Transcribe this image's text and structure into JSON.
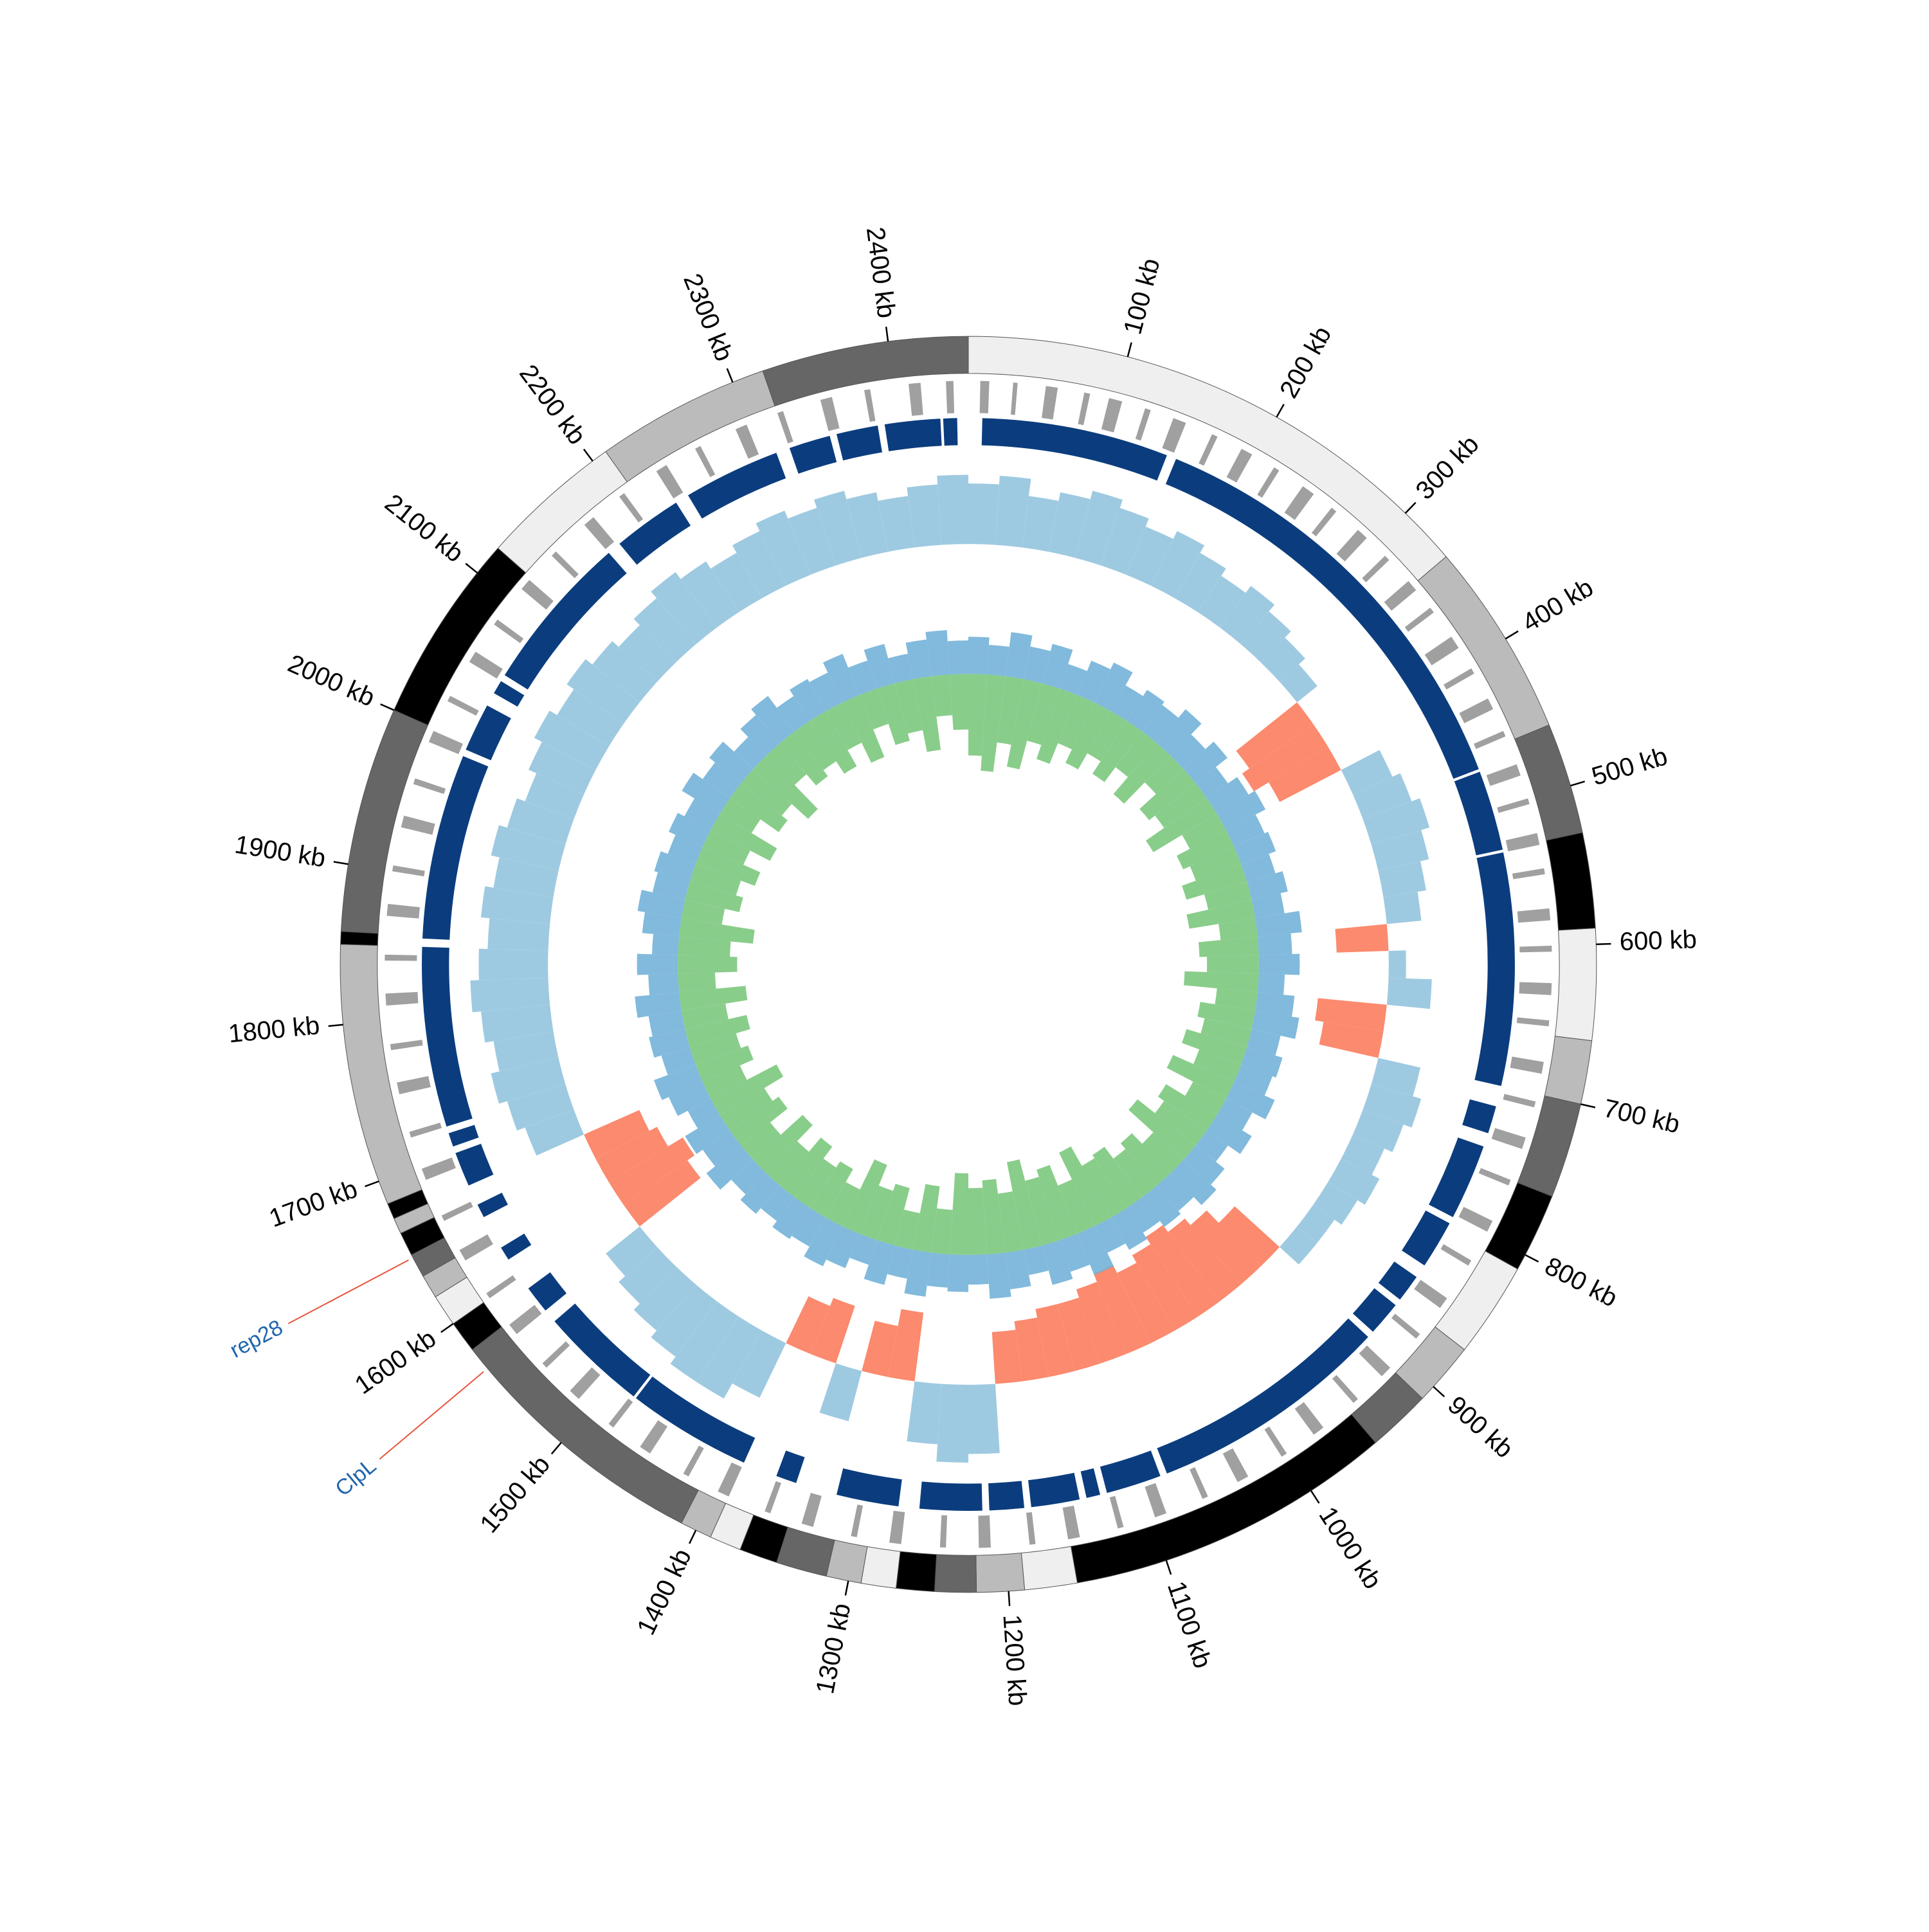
{
  "chart_data": {
    "type": "circos",
    "xlim": [
      0,
      2450
    ],
    "xticks": [
      {
        "value": 100,
        "label": "100 kb"
      },
      {
        "value": 200,
        "label": "200 kb"
      },
      {
        "value": 300,
        "label": "300 kb"
      },
      {
        "value": 400,
        "label": "400 kb"
      },
      {
        "value": 500,
        "label": "500 kb"
      },
      {
        "value": 600,
        "label": "600 kb"
      },
      {
        "value": 700,
        "label": "700 kb"
      },
      {
        "value": 800,
        "label": "800 kb"
      },
      {
        "value": 900,
        "label": "900 kb"
      },
      {
        "value": 1000,
        "label": "1000 kb"
      },
      {
        "value": 1100,
        "label": "1100 kb"
      },
      {
        "value": 1200,
        "label": "1200 kb"
      },
      {
        "value": 1300,
        "label": "1300 kb"
      },
      {
        "value": 1400,
        "label": "1400 kb"
      },
      {
        "value": 1500,
        "label": "1500 kb"
      },
      {
        "value": 1600,
        "label": "1600 kb"
      },
      {
        "value": 1700,
        "label": "1700 kb"
      },
      {
        "value": 1800,
        "label": "1800 kb"
      },
      {
        "value": 1900,
        "label": "1900 kb"
      },
      {
        "value": 2000,
        "label": "2000 kb"
      },
      {
        "value": 2100,
        "label": "2100 kb"
      },
      {
        "value": 2200,
        "label": "2200 kb"
      },
      {
        "value": 2300,
        "label": "2300 kb"
      },
      {
        "value": 2400,
        "label": "2400 kb"
      }
    ],
    "bands": [
      {
        "start": 0,
        "end": 337,
        "color": "#efefef"
      },
      {
        "start": 337,
        "end": 460,
        "color": "#bbbbbb"
      },
      {
        "start": 460,
        "end": 530,
        "color": "#666666"
      },
      {
        "start": 530,
        "end": 590,
        "color": "#000000"
      },
      {
        "start": 590,
        "end": 660,
        "color": "#efefef"
      },
      {
        "start": 660,
        "end": 700,
        "color": "#bbbbbb"
      },
      {
        "start": 700,
        "end": 760,
        "color": "#666666"
      },
      {
        "start": 760,
        "end": 810,
        "color": "#000000"
      },
      {
        "start": 810,
        "end": 870,
        "color": "#efefef"
      },
      {
        "start": 870,
        "end": 910,
        "color": "#bbbbbb"
      },
      {
        "start": 910,
        "end": 950,
        "color": "#666666"
      },
      {
        "start": 950,
        "end": 1157,
        "color": "#000000"
      },
      {
        "start": 1157,
        "end": 1190,
        "color": "#efefef"
      },
      {
        "start": 1190,
        "end": 1220,
        "color": "#bbbbbb"
      },
      {
        "start": 1220,
        "end": 1246,
        "color": "#666666"
      },
      {
        "start": 1246,
        "end": 1270,
        "color": "#000000"
      },
      {
        "start": 1270,
        "end": 1292,
        "color": "#efefef"
      },
      {
        "start": 1292,
        "end": 1314,
        "color": "#bbbbbb"
      },
      {
        "start": 1314,
        "end": 1346,
        "color": "#666666"
      },
      {
        "start": 1346,
        "end": 1370,
        "color": "#000000"
      },
      {
        "start": 1370,
        "end": 1390,
        "color": "#efefef"
      },
      {
        "start": 1390,
        "end": 1410,
        "color": "#bbbbbb"
      },
      {
        "start": 1410,
        "end": 1580,
        "color": "#666666"
      },
      {
        "start": 1580,
        "end": 1600,
        "color": "#000000"
      },
      {
        "start": 1600,
        "end": 1620,
        "color": "#efefef"
      },
      {
        "start": 1620,
        "end": 1635,
        "color": "#bbbbbb"
      },
      {
        "start": 1635,
        "end": 1650,
        "color": "#666666"
      },
      {
        "start": 1650,
        "end": 1665,
        "color": "#000000"
      },
      {
        "start": 1665,
        "end": 1675,
        "color": "#bbbbbb"
      },
      {
        "start": 1675,
        "end": 1685,
        "color": "#000000"
      },
      {
        "start": 1685,
        "end": 1850,
        "color": "#bbbbbb"
      },
      {
        "start": 1850,
        "end": 1858,
        "color": "#000000"
      },
      {
        "start": 1858,
        "end": 2000,
        "color": "#666666"
      },
      {
        "start": 2000,
        "end": 2120,
        "color": "#000000"
      },
      {
        "start": 2120,
        "end": 2210,
        "color": "#efefef"
      },
      {
        "start": 2210,
        "end": 2320,
        "color": "#bbbbbb"
      },
      {
        "start": 2320,
        "end": 2450,
        "color": "#666666"
      }
    ],
    "genes": {
      "color": "#a0a0a0",
      "spans": [
        [
          8,
          14
        ],
        [
          30,
          33
        ],
        [
          52,
          60
        ],
        [
          78,
          82
        ],
        [
          95,
          104
        ],
        [
          120,
          124
        ],
        [
          140,
          149
        ],
        [
          168,
          172
        ],
        [
          190,
          198
        ],
        [
          215,
          219
        ],
        [
          238,
          247
        ],
        [
          262,
          266
        ],
        [
          285,
          293
        ],
        [
          310,
          314
        ],
        [
          333,
          341
        ],
        [
          356,
          360
        ],
        [
          380,
          389
        ],
        [
          405,
          409
        ],
        [
          428,
          436
        ],
        [
          452,
          456
        ],
        [
          476,
          484
        ],
        [
          500,
          504
        ],
        [
          524,
          532
        ],
        [
          548,
          552
        ],
        [
          575,
          583
        ],
        [
          600,
          604
        ],
        [
          625,
          633
        ],
        [
          650,
          654
        ],
        [
          678,
          686
        ],
        [
          705,
          709
        ],
        [
          730,
          738
        ],
        [
          760,
          764
        ],
        [
          790,
          798
        ],
        [
          820,
          824
        ],
        [
          850,
          858
        ],
        [
          880,
          884
        ],
        [
          910,
          918
        ],
        [
          940,
          944
        ],
        [
          970,
          978
        ],
        [
          1000,
          1004
        ],
        [
          1030,
          1038
        ],
        [
          1060,
          1064
        ],
        [
          1090,
          1098
        ],
        [
          1120,
          1124
        ],
        [
          1150,
          1158
        ],
        [
          1180,
          1184
        ],
        [
          1210,
          1218
        ],
        [
          1240,
          1244
        ],
        [
          1270,
          1278
        ],
        [
          1300,
          1304
        ],
        [
          1330,
          1338
        ],
        [
          1360,
          1364
        ],
        [
          1390,
          1398
        ],
        [
          1420,
          1424
        ],
        [
          1450,
          1458
        ],
        [
          1480,
          1484
        ],
        [
          1510,
          1518
        ],
        [
          1540,
          1544
        ],
        [
          1570,
          1578
        ],
        [
          1600,
          1604
        ],
        [
          1630,
          1638
        ],
        [
          1660,
          1664
        ],
        [
          1690,
          1698
        ],
        [
          1720,
          1724
        ],
        [
          1750,
          1758
        ],
        [
          1780,
          1784
        ],
        [
          1810,
          1818
        ],
        [
          1840,
          1844
        ],
        [
          1870,
          1878
        ],
        [
          1900,
          1904
        ],
        [
          1930,
          1938
        ],
        [
          1960,
          1964
        ],
        [
          1990,
          1998
        ],
        [
          2020,
          2024
        ],
        [
          2050,
          2058
        ],
        [
          2080,
          2084
        ],
        [
          2110,
          2118
        ],
        [
          2140,
          2144
        ],
        [
          2170,
          2178
        ],
        [
          2200,
          2204
        ],
        [
          2230,
          2238
        ],
        [
          2260,
          2264
        ],
        [
          2290,
          2298
        ],
        [
          2320,
          2324
        ],
        [
          2350,
          2358
        ],
        [
          2380,
          2384
        ],
        [
          2410,
          2418
        ],
        [
          2435,
          2440
        ]
      ]
    },
    "blocks": {
      "color": "#0b3d7e",
      "spans": [
        [
          10,
          145
        ],
        [
          152,
          470
        ],
        [
          472,
          530
        ],
        [
          532,
          700
        ],
        [
          715,
          735
        ],
        [
          745,
          800
        ],
        [
          805,
          840
        ],
        [
          850,
          870
        ],
        [
          875,
          900
        ],
        [
          905,
          1080
        ],
        [
          1085,
          1125
        ],
        [
          1130,
          1140
        ],
        [
          1145,
          1180
        ],
        [
          1185,
          1210
        ],
        [
          1215,
          1260
        ],
        [
          1275,
          1320
        ],
        [
          1350,
          1365
        ],
        [
          1390,
          1480
        ],
        [
          1482,
          1560
        ],
        [
          1570,
          1590
        ],
        [
          1615,
          1625
        ],
        [
          1650,
          1660
        ],
        [
          1675,
          1700
        ],
        [
          1705,
          1715
        ],
        [
          1720,
          1850
        ],
        [
          1856,
          1990
        ],
        [
          1995,
          2030
        ],
        [
          2040,
          2050
        ],
        [
          2055,
          2170
        ],
        [
          2180,
          2230
        ],
        [
          2240,
          2310
        ],
        [
          2320,
          2350
        ],
        [
          2355,
          2385
        ],
        [
          2390,
          2430
        ],
        [
          2432,
          2442
        ]
      ]
    },
    "x": [
      0,
      25,
      50,
      75,
      100,
      125,
      150,
      175,
      200,
      225,
      250,
      275,
      300,
      325,
      350,
      375,
      400,
      425,
      450,
      475,
      500,
      525,
      550,
      575,
      600,
      625,
      650,
      675,
      700,
      725,
      750,
      775,
      800,
      825,
      850,
      875,
      900,
      925,
      950,
      975,
      1000,
      1025,
      1050,
      1075,
      1100,
      1125,
      1150,
      1175,
      1200,
      1225,
      1250,
      1275,
      1300,
      1325,
      1350,
      1375,
      1400,
      1425,
      1450,
      1475,
      1500,
      1525,
      1550,
      1575,
      1600,
      1625,
      1650,
      1675,
      1700,
      1725,
      1750,
      1775,
      1800,
      1825,
      1850,
      1875,
      1900,
      1925,
      1950,
      1975,
      2000,
      2025,
      2050,
      2075,
      2100,
      2125,
      2150,
      2175,
      2200,
      2225,
      2250,
      2275,
      2300,
      2325,
      2350,
      2375,
      2400,
      2425
    ],
    "coverage": {
      "ylim": [
        -1.2,
        1
      ],
      "positive_color": "#9ecae1",
      "negative_color": "#fb8a6e",
      "values": [
        0.7,
        0.8,
        0.6,
        0.7,
        0.8,
        0.7,
        0.6,
        0.7,
        0.6,
        0.5,
        0.6,
        0.5,
        0.4,
        0.3,
        -0.9,
        -1.0,
        -0.8,
        0.5,
        0.6,
        0.7,
        0.6,
        0.5,
        0.4,
        -0.6,
        0.2,
        0.5,
        -0.8,
        -0.7,
        0.5,
        0.6,
        0.5,
        0.4,
        0.5,
        0.4,
        0.3,
        0.3,
        -0.7,
        -0.9,
        -1.0,
        -1.1,
        -1.0,
        -0.9,
        -1.0,
        -0.9,
        -0.8,
        -0.8,
        -0.7,
        -0.6,
        0.8,
        0.9,
        0.7,
        -0.8,
        -0.6,
        0.6,
        -0.7,
        -0.6,
        0.7,
        0.9,
        0.9,
        0.8,
        0.7,
        0.6,
        0.5,
        -0.9,
        -1.0,
        -0.8,
        -0.7,
        0.6,
        0.7,
        0.8,
        0.7,
        0.8,
        0.9,
        0.8,
        0.7,
        0.8,
        0.7,
        0.8,
        0.7,
        0.6,
        0.7,
        0.8,
        0.7,
        0.8,
        0.7,
        0.6,
        0.7,
        0.8,
        0.7,
        0.6,
        0.7,
        0.8,
        0.7,
        0.8,
        0.7,
        0.6,
        0.7,
        0.8
      ]
    },
    "gc": {
      "ylim": [
        -1.4,
        1
      ],
      "series": [
        {
          "color": "#74c476",
          "values": [
            -1.1,
            -1.3,
            -0.9,
            -1.2,
            -0.8,
            -1.0,
            -0.7,
            -0.9,
            -0.65,
            -0.85,
            -0.6,
            -0.9,
            -0.5,
            -0.8,
            -0.7,
            -1.0,
            -0.55,
            -0.75,
            -0.65,
            -0.85,
            -0.6,
            -0.9,
            -0.5,
            -0.8,
            -0.7,
            -1.0,
            -0.55,
            -0.75,
            -0.65,
            -0.85,
            -0.6,
            -0.9,
            -0.5,
            -0.8,
            -0.7,
            -1.0,
            -0.55,
            -0.75,
            -0.65,
            -0.85,
            -0.8,
            -1.1,
            -0.7,
            -1.0,
            -0.9,
            -1.2,
            -0.8,
            -1.0,
            -0.9,
            -1.1,
            -0.6,
            -0.9,
            -0.5,
            -0.8,
            -0.7,
            -1.0,
            -0.55,
            -0.75,
            -0.65,
            -0.85,
            -0.6,
            -0.9,
            -0.5,
            -0.8,
            -0.7,
            -1.0,
            -0.55,
            -0.75,
            -0.65,
            -0.85,
            -0.6,
            -0.9,
            -0.5,
            -0.8,
            -0.7,
            -1.0,
            -0.55,
            -0.75,
            -0.65,
            -0.85,
            -0.6,
            -0.9,
            -0.5,
            -0.8,
            -0.7,
            -1.0,
            -0.55,
            -0.75,
            -0.65,
            -0.85,
            -0.6,
            -0.9,
            -0.5,
            -0.8,
            -0.7,
            -1.0,
            -0.55,
            -0.75
          ]
        },
        {
          "color": "#6baed6",
          "values": [
            0.5,
            0.4,
            0.6,
            0.45,
            0.55,
            0.35,
            0.5,
            0.6,
            0.4,
            0.5,
            0.45,
            0.6,
            0.4,
            0.55,
            0.35,
            0.5,
            0.6,
            0.45,
            0.5,
            0.4,
            0.5,
            0.4,
            0.6,
            0.45,
            0.55,
            0.35,
            0.5,
            0.6,
            0.4,
            0.5,
            0.45,
            0.6,
            0.4,
            0.55,
            0.35,
            0.5,
            0.6,
            0.45,
            0.5,
            0.4,
            0.5,
            0.4,
            0.6,
            0.45,
            0.55,
            0.35,
            0.5,
            0.6,
            0.4,
            0.5,
            0.45,
            0.6,
            0.4,
            0.55,
            0.35,
            0.5,
            0.6,
            0.45,
            0.5,
            0.4,
            0.5,
            0.4,
            0.6,
            0.45,
            0.55,
            0.35,
            0.5,
            0.6,
            0.4,
            0.5,
            0.45,
            0.6,
            0.4,
            0.55,
            0.35,
            0.5,
            0.6,
            0.45,
            0.5,
            0.4,
            0.5,
            0.4,
            0.6,
            0.45,
            0.55,
            0.35,
            0.5,
            0.6,
            0.4,
            0.5,
            0.45,
            0.6,
            0.4,
            0.55,
            0.35,
            0.5,
            0.6,
            0.45
          ]
        }
      ]
    },
    "annotations": [
      {
        "label": "rep28",
        "position": 1648,
        "color": "#2166ac",
        "line_color": "#e8553e"
      },
      {
        "label": "ClpL",
        "position": 1565,
        "color": "#2166ac",
        "line_color": "#e8553e"
      }
    ]
  }
}
